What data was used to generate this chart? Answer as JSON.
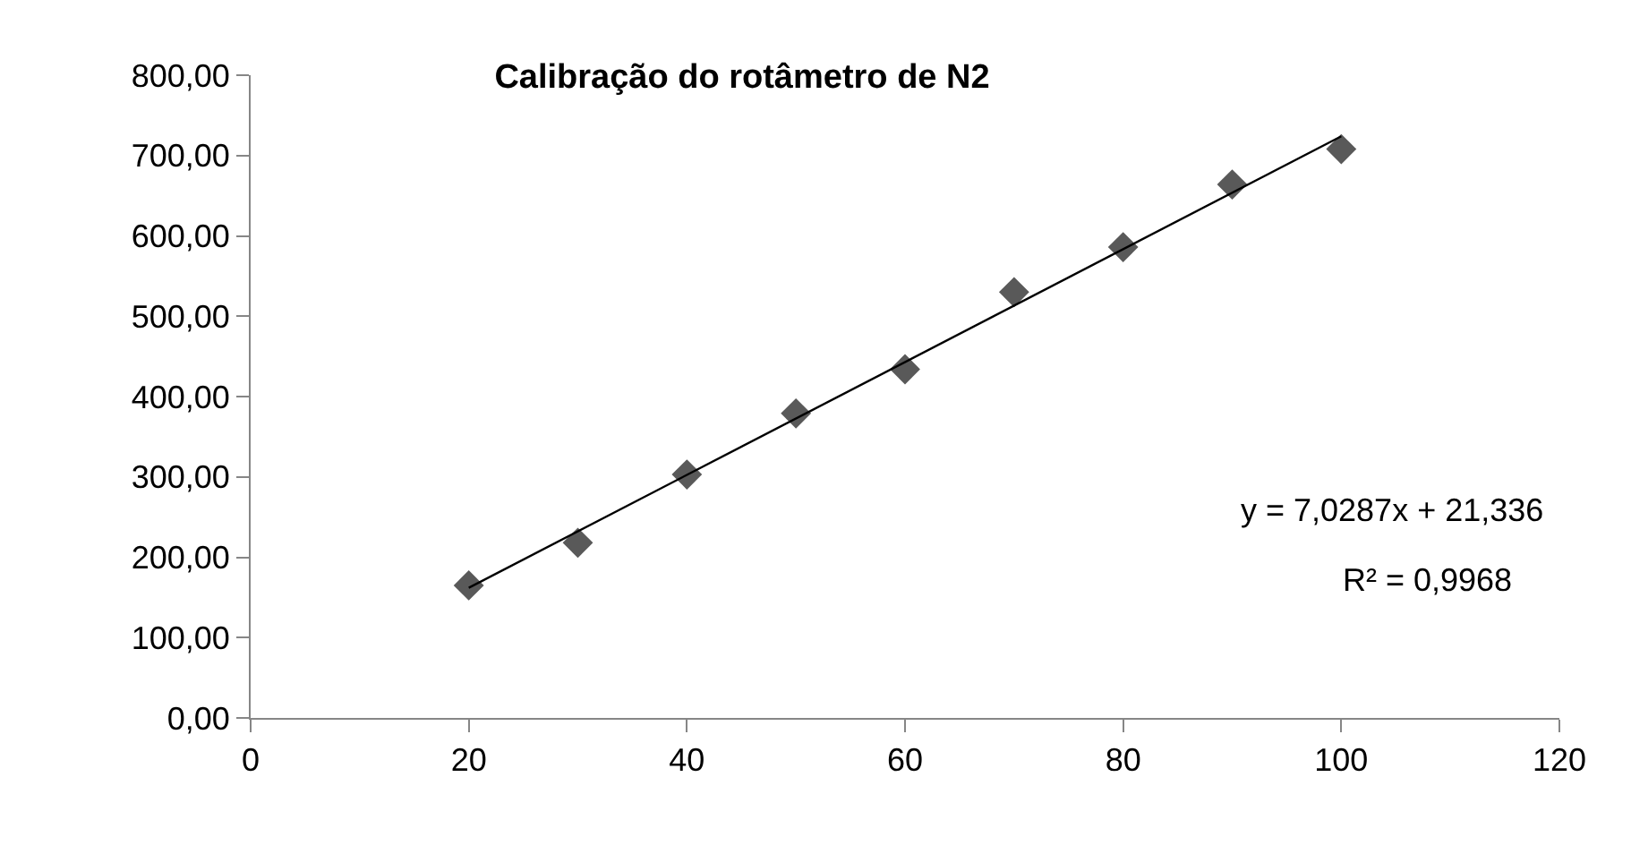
{
  "chart_data": {
    "type": "scatter",
    "title": "Calibração do rotâmetro de N2",
    "marker": "diamond",
    "grid": false,
    "x": [
      20,
      30,
      40,
      50,
      60,
      70,
      80,
      90,
      100
    ],
    "series": [
      {
        "color": "#595959",
        "values": [
          165,
          218,
          303,
          379,
          434,
          530,
          586,
          664,
          708
        ]
      },
      {
        "type": "line",
        "color": "#000000",
        "x": [
          20,
          100
        ],
        "values": [
          162,
          724
        ],
        "marker": "none",
        "line_style": "solid"
      }
    ],
    "xlim": [
      0,
      120
    ],
    "xticks": [
      0,
      20,
      40,
      60,
      80,
      100,
      120
    ],
    "ylim": [
      0,
      800
    ],
    "yticks": [
      {
        "value": 0,
        "label": "0,00"
      },
      {
        "value": 100,
        "label": "100,00"
      },
      {
        "value": 200,
        "label": "200,00"
      },
      {
        "value": 300,
        "label": "300,00"
      },
      {
        "value": 400,
        "label": "400,00"
      },
      {
        "value": 500,
        "label": "500,00"
      },
      {
        "value": 600,
        "label": "600,00"
      },
      {
        "value": 700,
        "label": "700,00"
      },
      {
        "value": 800,
        "label": "800,00"
      }
    ],
    "annotations": [
      "y = 7,0287x + 21,336",
      "R² = 0,9968"
    ]
  }
}
